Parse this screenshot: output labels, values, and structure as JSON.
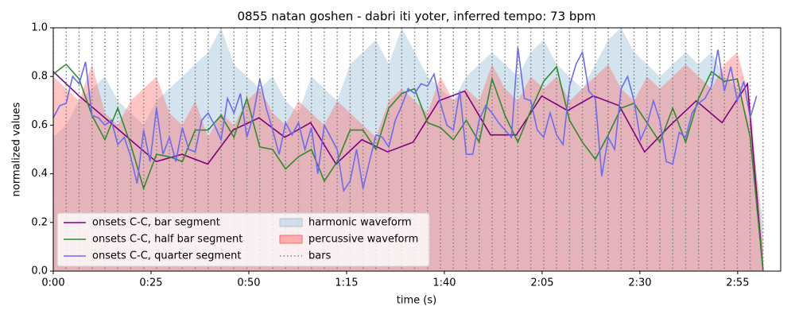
{
  "chart_data": {
    "type": "line",
    "title": "0855 natan goshen - dabri iti yoter, inferred tempo: 73 bpm",
    "x_label": "time (s)",
    "y_label": "normalized values",
    "xlim": [
      0,
      186
    ],
    "ylim": [
      0,
      1
    ],
    "xticks": [
      {
        "value": 0,
        "label": "0:00"
      },
      {
        "value": 25,
        "label": "0:25"
      },
      {
        "value": 50,
        "label": "0:50"
      },
      {
        "value": 75,
        "label": "1:15"
      },
      {
        "value": 100,
        "label": "1:40"
      },
      {
        "value": 125,
        "label": "2:05"
      },
      {
        "value": 150,
        "label": "2:30"
      },
      {
        "value": 175,
        "label": "2:55"
      }
    ],
    "yticks": [
      {
        "value": 0,
        "label": "0.0"
      },
      {
        "value": 0.2,
        "label": "0.2"
      },
      {
        "value": 0.4,
        "label": "0.4"
      },
      {
        "value": 0.6,
        "label": "0.6"
      },
      {
        "value": 0.8,
        "label": "0.8"
      },
      {
        "value": 1,
        "label": "1.0"
      }
    ],
    "legend": "lower left",
    "areas": [
      {
        "name": "harmonic waveform",
        "color": "#a9c9de",
        "x": [
          0,
          3.3,
          6.6,
          9.9,
          13.2,
          16.5,
          19.8,
          23.1,
          26.4,
          29.7,
          33,
          36.3,
          39.6,
          42.9,
          46.2,
          49.5,
          52.8,
          56.1,
          59.4,
          62.7,
          66,
          69.3,
          72.6,
          75.9,
          79.2,
          82.5,
          85.8,
          89.1,
          92.4,
          95.7,
          99,
          102.3,
          105.6,
          108.9,
          112.2,
          115.5,
          118.8,
          122.1,
          125.4,
          128.7,
          132,
          135.3,
          138.6,
          141.9,
          145.2,
          148.5,
          151.8,
          155.1,
          158.4,
          161.7,
          165,
          168.3,
          171.6,
          174.9,
          178.2,
          181.5
        ],
        "values": [
          0.55,
          0.6,
          0.7,
          0.75,
          0.8,
          0.7,
          0.65,
          0.6,
          0.7,
          0.75,
          0.8,
          0.85,
          0.9,
          1.0,
          0.85,
          0.8,
          0.75,
          0.8,
          0.7,
          0.65,
          0.8,
          0.75,
          0.7,
          0.85,
          0.9,
          0.95,
          0.85,
          1.0,
          0.9,
          0.8,
          0.75,
          0.7,
          0.8,
          0.85,
          0.9,
          0.85,
          0.8,
          0.9,
          0.95,
          0.85,
          0.8,
          0.75,
          0.85,
          0.95,
          1.0,
          0.9,
          0.85,
          0.8,
          0.85,
          0.9,
          0.85,
          0.9,
          0.8,
          0.75,
          0.6,
          0.2
        ]
      },
      {
        "name": "percussive waveform",
        "color": "#ff6b6b",
        "x": [
          0,
          3.3,
          6.6,
          9.9,
          13.2,
          16.5,
          19.8,
          23.1,
          26.4,
          29.7,
          33,
          36.3,
          39.6,
          42.9,
          46.2,
          49.5,
          52.8,
          56.1,
          59.4,
          62.7,
          66,
          69.3,
          72.6,
          75.9,
          79.2,
          82.5,
          85.8,
          89.1,
          92.4,
          95.7,
          99,
          102.3,
          105.6,
          108.9,
          112.2,
          115.5,
          118.8,
          122.1,
          125.4,
          128.7,
          132,
          135.3,
          138.6,
          141.9,
          145.2,
          148.5,
          151.8,
          155.1,
          158.4,
          161.7,
          165,
          168.3,
          171.6,
          174.9,
          178.2,
          181.5
        ],
        "values": [
          0.8,
          0.75,
          0.7,
          0.85,
          0.65,
          0.6,
          0.7,
          0.75,
          0.8,
          0.65,
          0.6,
          0.7,
          0.55,
          0.65,
          0.6,
          0.7,
          0.75,
          0.65,
          0.6,
          0.7,
          0.65,
          0.6,
          0.7,
          0.65,
          0.6,
          0.55,
          0.7,
          0.75,
          0.7,
          0.65,
          0.8,
          0.7,
          0.75,
          0.7,
          0.85,
          0.75,
          0.7,
          0.8,
          0.75,
          0.8,
          0.7,
          0.75,
          0.8,
          0.85,
          0.75,
          0.7,
          0.8,
          0.75,
          0.8,
          0.85,
          0.8,
          0.75,
          0.85,
          0.9,
          0.7,
          0.1
        ]
      }
    ],
    "bars": {
      "name": "bars",
      "color": "#808080",
      "x": [
        0,
        3.3,
        6.6,
        9.9,
        13.2,
        16.5,
        19.8,
        23.1,
        26.4,
        29.7,
        33,
        36.3,
        39.6,
        42.9,
        46.2,
        49.5,
        52.8,
        56.1,
        59.4,
        62.7,
        66,
        69.3,
        72.6,
        75.9,
        79.2,
        82.5,
        85.8,
        89.1,
        92.4,
        95.7,
        99,
        102.3,
        105.6,
        108.9,
        112.2,
        115.5,
        118.8,
        122.1,
        125.4,
        128.7,
        132,
        135.3,
        138.6,
        141.9,
        145.2,
        148.5,
        151.8,
        155.1,
        158.4,
        161.7,
        165,
        168.3,
        171.6,
        174.9,
        178.2,
        181.5
      ]
    },
    "series": [
      {
        "name": "onsets C-C, bar segment",
        "color": "#800080",
        "x": [
          0,
          6.6,
          13.2,
          19.7,
          26.3,
          32.9,
          39.5,
          46,
          52.6,
          59.2,
          65.8,
          72.3,
          78.9,
          85.5,
          92,
          98.6,
          105.2,
          111.8,
          118.4,
          124.9,
          131.5,
          138.1,
          144.7,
          151.2,
          157.8,
          164.4,
          171,
          177.5,
          181.5
        ],
        "values": [
          0.82,
          0.72,
          0.63,
          0.54,
          0.45,
          0.48,
          0.44,
          0.58,
          0.63,
          0.55,
          0.61,
          0.44,
          0.54,
          0.49,
          0.53,
          0.7,
          0.74,
          0.56,
          0.56,
          0.72,
          0.66,
          0.72,
          0.68,
          0.49,
          0.6,
          0.7,
          0.61,
          0.77,
          0.0
        ]
      },
      {
        "name": "onsets C-C, half bar segment",
        "color": "#2e8b2e",
        "x": [
          0,
          3.3,
          6.6,
          9.9,
          13.2,
          16.5,
          19.8,
          23.1,
          26.4,
          29.7,
          33,
          36.3,
          39.6,
          42.9,
          46.2,
          49.5,
          52.8,
          56.1,
          59.4,
          62.7,
          66,
          69.3,
          72.6,
          75.9,
          79.2,
          82.5,
          85.8,
          89.1,
          92.4,
          95.7,
          99,
          102.3,
          105.6,
          108.9,
          112.2,
          115.5,
          118.8,
          122.1,
          125.4,
          128.7,
          132,
          135.3,
          138.6,
          141.9,
          145.2,
          148.5,
          151.8,
          155.1,
          158.4,
          161.7,
          165,
          168.3,
          171.6,
          174.9,
          178.2,
          181.5
        ],
        "values": [
          0.81,
          0.85,
          0.79,
          0.64,
          0.54,
          0.67,
          0.52,
          0.34,
          0.48,
          0.47,
          0.45,
          0.58,
          0.58,
          0.64,
          0.55,
          0.71,
          0.51,
          0.5,
          0.42,
          0.47,
          0.5,
          0.37,
          0.45,
          0.58,
          0.58,
          0.5,
          0.67,
          0.73,
          0.75,
          0.61,
          0.59,
          0.54,
          0.62,
          0.53,
          0.79,
          0.64,
          0.53,
          0.66,
          0.78,
          0.84,
          0.62,
          0.53,
          0.46,
          0.56,
          0.67,
          0.69,
          0.61,
          0.53,
          0.67,
          0.53,
          0.71,
          0.82,
          0.78,
          0.79,
          0.55,
          0.0
        ]
      },
      {
        "name": "onsets C-C, quarter segment",
        "color": "#6b6bf0",
        "x": [
          0,
          1.65,
          3.3,
          4.95,
          6.6,
          8.25,
          9.9,
          11.55,
          13.2,
          14.85,
          16.5,
          18.15,
          19.8,
          21.45,
          23.1,
          24.75,
          26.4,
          28.05,
          29.7,
          31.35,
          33,
          34.65,
          36.3,
          37.95,
          39.6,
          41.25,
          42.9,
          44.55,
          46.2,
          47.85,
          49.5,
          51.15,
          52.8,
          54.45,
          56.1,
          57.75,
          59.4,
          61.05,
          62.7,
          64.35,
          66,
          67.65,
          69.3,
          70.95,
          72.6,
          74.25,
          75.9,
          77.55,
          79.2,
          80.85,
          82.5,
          84.15,
          85.8,
          87.45,
          89.1,
          90.75,
          92.4,
          94.05,
          95.7,
          97.35,
          99,
          100.65,
          102.3,
          103.95,
          105.6,
          107.25,
          108.9,
          110.55,
          112.2,
          113.85,
          115.5,
          117.15,
          118.8,
          120.45,
          122.1,
          123.75,
          125.4,
          127.05,
          128.7,
          130.35,
          132,
          133.65,
          135.3,
          136.95,
          138.6,
          140.25,
          141.9,
          143.55,
          145.2,
          146.85,
          148.5,
          150.15,
          151.8,
          153.45,
          155.1,
          156.75,
          158.4,
          160.05,
          161.7,
          163.35,
          165,
          166.65,
          168.3,
          169.95,
          171.6,
          173.25,
          174.9,
          176.55,
          178.2,
          179.85
        ],
        "values": [
          0.63,
          0.68,
          0.69,
          0.8,
          0.77,
          0.86,
          0.64,
          0.63,
          0.6,
          0.62,
          0.52,
          0.55,
          0.47,
          0.36,
          0.58,
          0.45,
          0.67,
          0.48,
          0.55,
          0.45,
          0.59,
          0.5,
          0.49,
          0.62,
          0.65,
          0.6,
          0.54,
          0.71,
          0.65,
          0.73,
          0.55,
          0.64,
          0.79,
          0.67,
          0.58,
          0.48,
          0.61,
          0.56,
          0.61,
          0.5,
          0.59,
          0.4,
          0.6,
          0.55,
          0.5,
          0.33,
          0.37,
          0.5,
          0.34,
          0.45,
          0.56,
          0.55,
          0.51,
          0.62,
          0.68,
          0.75,
          0.73,
          0.77,
          0.76,
          0.81,
          0.69,
          0.6,
          0.58,
          0.74,
          0.48,
          0.48,
          0.62,
          0.68,
          0.65,
          0.61,
          0.58,
          0.55,
          0.92,
          0.71,
          0.7,
          0.58,
          0.55,
          0.65,
          0.56,
          0.52,
          0.76,
          0.85,
          0.9,
          0.74,
          0.71,
          0.39,
          0.55,
          0.5,
          0.75,
          0.8,
          0.7,
          0.54,
          0.6,
          0.7,
          0.62,
          0.45,
          0.44,
          0.57,
          0.55,
          0.65,
          0.69,
          0.71,
          0.76,
          0.91,
          0.74,
          0.84,
          0.7,
          0.78,
          0.63,
          0.72
        ]
      }
    ]
  }
}
